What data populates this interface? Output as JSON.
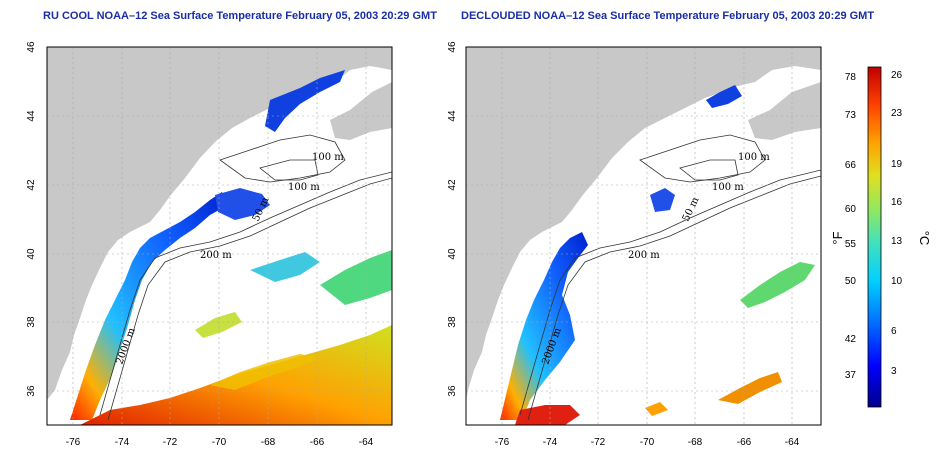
{
  "panels": [
    {
      "id": "left",
      "title": "RU COOL NOAA–12 Sea Surface Temperature February 05, 2003 20:29 GMT",
      "contours": [
        "100 m",
        "100 m",
        "50 m",
        "200 m",
        "2000 m"
      ]
    },
    {
      "id": "right",
      "title": "DECLOUDED NOAA–12 Sea Surface Temperature February 05, 2003 20:29 GMT",
      "contours": [
        "100 m",
        "100 m",
        "50 m",
        "200 m",
        "2000 m"
      ]
    }
  ],
  "axes": {
    "x_ticks": [
      "-76",
      "-74",
      "-72",
      "-70",
      "-68",
      "-66",
      "-64"
    ],
    "y_ticks": [
      "46",
      "44",
      "42",
      "40",
      "38",
      "36"
    ],
    "lon_range": [
      -77,
      -63
    ],
    "lat_range": [
      35,
      46
    ]
  },
  "colorbar": {
    "fahrenheit_unit": "°F",
    "celsius_unit": "°C",
    "fahrenheit_ticks": [
      "78",
      "73",
      "66",
      "60",
      "55",
      "50",
      "42",
      "37"
    ],
    "celsius_ticks": [
      "26",
      "23",
      "19",
      "16",
      "13",
      "10",
      "6",
      "3"
    ],
    "gradient_colors": [
      "#00008b",
      "#0000ff",
      "#0070ff",
      "#00d0ff",
      "#40e0c0",
      "#90e860",
      "#e0e020",
      "#ffa000",
      "#ff4000",
      "#c00000"
    ]
  },
  "colors": {
    "land": "#c8c8c8",
    "background": "#ffffff",
    "title": "#1a2ea6"
  }
}
